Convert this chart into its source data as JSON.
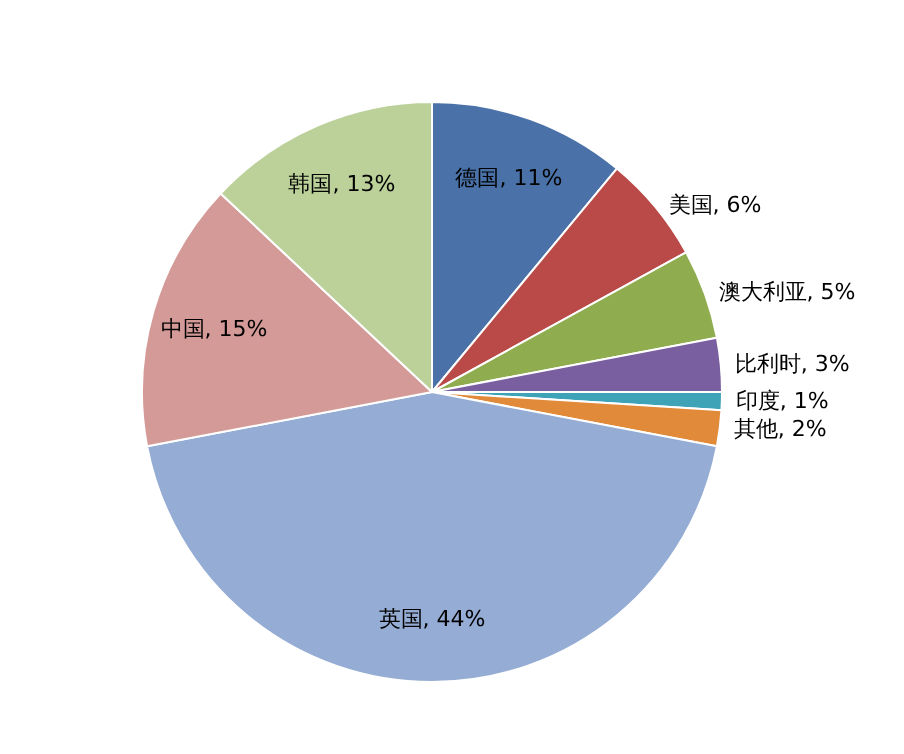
{
  "chart_data": {
    "type": "pie",
    "categories": [
      "德国",
      "美国",
      "澳大利亚",
      "比利时",
      "印度",
      "其他",
      "英国",
      "中国",
      "韩国"
    ],
    "values": [
      11,
      6,
      5,
      3,
      1,
      2,
      44,
      15,
      13
    ],
    "value_labels": [
      "11%",
      "6%",
      "5%",
      "3%",
      "1%",
      "2%",
      "44%",
      "15%",
      "13%"
    ],
    "colors": [
      "#4a72a8",
      "#b94a48",
      "#8fac4f",
      "#7a5fa0",
      "#3fa3b8",
      "#e08a3a",
      "#95acd4",
      "#d49a98",
      "#bcd19a"
    ],
    "legend": false
  }
}
